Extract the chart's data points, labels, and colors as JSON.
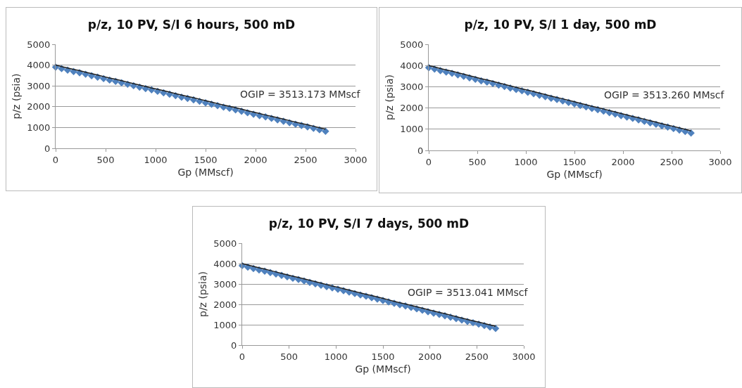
{
  "chart_data": [
    {
      "type": "scatter",
      "title": "p/z, 10 PV, S/I 6 hours, 500 mD",
      "xlabel": "Gp (MMscf)",
      "ylabel": "p/z (psia)",
      "xlim": [
        0,
        3000
      ],
      "xticks": [
        0,
        500,
        1000,
        1500,
        2000,
        2500,
        3000
      ],
      "ylim": [
        0,
        5000
      ],
      "yticks": [
        0,
        1000,
        2000,
        3000,
        4000,
        5000
      ],
      "grid": "y",
      "annotations": [
        "OGIP = 3513.173 MMscf"
      ],
      "x": [
        0,
        60,
        120,
        180,
        240,
        300,
        360,
        420,
        480,
        540,
        600,
        660,
        720,
        780,
        840,
        900,
        960,
        1020,
        1080,
        1140,
        1200,
        1260,
        1320,
        1380,
        1440,
        1500,
        1560,
        1620,
        1680,
        1740,
        1800,
        1860,
        1920,
        1980,
        2040,
        2100,
        2160,
        2220,
        2280,
        2340,
        2400,
        2460,
        2520,
        2580,
        2640,
        2700
      ],
      "series": [
        {
          "color": "#4f81bd",
          "marker": "diamond",
          "values": [
            3900,
            3830,
            3760,
            3690,
            3630,
            3560,
            3490,
            3420,
            3350,
            3280,
            3220,
            3150,
            3080,
            3010,
            2940,
            2870,
            2810,
            2740,
            2670,
            2600,
            2530,
            2460,
            2400,
            2330,
            2260,
            2190,
            2120,
            2050,
            1980,
            1920,
            1850,
            1780,
            1710,
            1640,
            1570,
            1510,
            1440,
            1370,
            1300,
            1230,
            1160,
            1100,
            1030,
            960,
            890,
            820
          ]
        },
        {
          "type": "line",
          "color": "#1f1f1f",
          "values": [
            4000,
            3930,
            3860,
            3790,
            3730,
            3660,
            3590,
            3520,
            3450,
            3380,
            3320,
            3250,
            3180,
            3110,
            3040,
            2970,
            2900,
            2840,
            2770,
            2700,
            2630,
            2560,
            2490,
            2430,
            2360,
            2290,
            2220,
            2150,
            2080,
            2020,
            1950,
            1880,
            1810,
            1740,
            1670,
            1600,
            1540,
            1470,
            1400,
            1330,
            1260,
            1190,
            1130,
            1060,
            990,
            920
          ]
        }
      ]
    },
    {
      "type": "scatter",
      "title": "p/z, 10 PV, S/I 1 day, 500 mD",
      "xlabel": "Gp (MMscf)",
      "ylabel": "p/z (psia)",
      "xlim": [
        0,
        3000
      ],
      "xticks": [
        0,
        500,
        1000,
        1500,
        2000,
        2500,
        3000
      ],
      "ylim": [
        0,
        5000
      ],
      "yticks": [
        0,
        1000,
        2000,
        3000,
        4000,
        5000
      ],
      "grid": "y",
      "annotations": [
        "OGIP = 3513.260 MMscf"
      ],
      "x": [
        0,
        60,
        120,
        180,
        240,
        300,
        360,
        420,
        480,
        540,
        600,
        660,
        720,
        780,
        840,
        900,
        960,
        1020,
        1080,
        1140,
        1200,
        1260,
        1320,
        1380,
        1440,
        1500,
        1560,
        1620,
        1680,
        1740,
        1800,
        1860,
        1920,
        1980,
        2040,
        2100,
        2160,
        2220,
        2280,
        2340,
        2400,
        2460,
        2520,
        2580,
        2640,
        2700
      ],
      "series": [
        {
          "color": "#4f81bd",
          "marker": "diamond",
          "values": [
            3900,
            3830,
            3760,
            3690,
            3630,
            3560,
            3490,
            3420,
            3350,
            3280,
            3220,
            3150,
            3080,
            3010,
            2940,
            2870,
            2810,
            2740,
            2670,
            2600,
            2530,
            2460,
            2400,
            2330,
            2260,
            2190,
            2120,
            2050,
            1980,
            1920,
            1850,
            1780,
            1710,
            1640,
            1570,
            1510,
            1440,
            1370,
            1300,
            1230,
            1160,
            1100,
            1030,
            960,
            890,
            820
          ]
        },
        {
          "type": "line",
          "color": "#1f1f1f",
          "values": [
            4000,
            3930,
            3860,
            3790,
            3730,
            3660,
            3590,
            3520,
            3450,
            3380,
            3320,
            3250,
            3180,
            3110,
            3040,
            2970,
            2900,
            2840,
            2770,
            2700,
            2630,
            2560,
            2490,
            2430,
            2360,
            2290,
            2220,
            2150,
            2080,
            2020,
            1950,
            1880,
            1810,
            1740,
            1670,
            1600,
            1540,
            1470,
            1400,
            1330,
            1260,
            1190,
            1130,
            1060,
            990,
            920
          ]
        }
      ]
    },
    {
      "type": "scatter",
      "title": "p/z, 10 PV, S/I 7 days, 500 mD",
      "xlabel": "Gp (MMscf)",
      "ylabel": "p/z (psia)",
      "xlim": [
        0,
        3000
      ],
      "xticks": [
        0,
        500,
        1000,
        1500,
        2000,
        2500,
        3000
      ],
      "ylim": [
        0,
        5000
      ],
      "yticks": [
        0,
        1000,
        2000,
        3000,
        4000,
        5000
      ],
      "grid": "y",
      "annotations": [
        "OGIP = 3513.041 MMscf"
      ],
      "x": [
        0,
        60,
        120,
        180,
        240,
        300,
        360,
        420,
        480,
        540,
        600,
        660,
        720,
        780,
        840,
        900,
        960,
        1020,
        1080,
        1140,
        1200,
        1260,
        1320,
        1380,
        1440,
        1500,
        1560,
        1620,
        1680,
        1740,
        1800,
        1860,
        1920,
        1980,
        2040,
        2100,
        2160,
        2220,
        2280,
        2340,
        2400,
        2460,
        2520,
        2580,
        2640,
        2700
      ],
      "series": [
        {
          "color": "#4f81bd",
          "marker": "diamond",
          "values": [
            3900,
            3830,
            3760,
            3690,
            3630,
            3560,
            3490,
            3420,
            3350,
            3280,
            3220,
            3150,
            3080,
            3010,
            2940,
            2870,
            2810,
            2740,
            2670,
            2600,
            2530,
            2460,
            2400,
            2330,
            2260,
            2190,
            2120,
            2050,
            1980,
            1920,
            1850,
            1780,
            1710,
            1640,
            1570,
            1510,
            1440,
            1370,
            1300,
            1230,
            1160,
            1100,
            1030,
            960,
            890,
            820
          ]
        },
        {
          "type": "line",
          "color": "#1f1f1f",
          "values": [
            4000,
            3930,
            3860,
            3790,
            3730,
            3660,
            3590,
            3520,
            3450,
            3380,
            3320,
            3250,
            3180,
            3110,
            3040,
            2970,
            2900,
            2840,
            2770,
            2700,
            2630,
            2560,
            2490,
            2430,
            2360,
            2290,
            2220,
            2150,
            2080,
            2020,
            1950,
            1880,
            1810,
            1740,
            1670,
            1600,
            1540,
            1470,
            1400,
            1330,
            1260,
            1190,
            1130,
            1060,
            990,
            920
          ]
        }
      ]
    }
  ]
}
